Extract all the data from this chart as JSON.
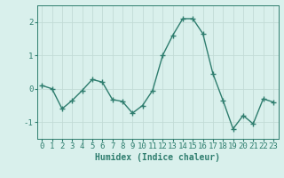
{
  "x": [
    0,
    1,
    2,
    3,
    4,
    5,
    6,
    7,
    8,
    9,
    10,
    11,
    12,
    13,
    14,
    15,
    16,
    17,
    18,
    19,
    20,
    21,
    22,
    23
  ],
  "y": [
    0.1,
    0.0,
    -0.6,
    -0.35,
    -0.05,
    0.28,
    0.2,
    -0.32,
    -0.38,
    -0.73,
    -0.5,
    -0.05,
    1.0,
    1.6,
    2.1,
    2.1,
    1.65,
    0.45,
    -0.35,
    -1.2,
    -0.8,
    -1.05,
    -0.3,
    -0.4
  ],
  "line_color": "#2e7d6e",
  "marker": "+",
  "marker_size": 4,
  "bg_color": "#d9f0ec",
  "grid_color": "#c2dbd6",
  "tick_color": "#2e7d6e",
  "label_color": "#2e7d6e",
  "xlabel": "Humidex (Indice chaleur)",
  "ylim": [
    -1.5,
    2.5
  ],
  "xlim": [
    -0.5,
    23.5
  ],
  "yticks": [
    -1,
    0,
    1,
    2
  ],
  "xticks": [
    0,
    1,
    2,
    3,
    4,
    5,
    6,
    7,
    8,
    9,
    10,
    11,
    12,
    13,
    14,
    15,
    16,
    17,
    18,
    19,
    20,
    21,
    22,
    23
  ],
  "xlabel_fontsize": 7,
  "tick_fontsize": 6.5,
  "linewidth": 1.0
}
